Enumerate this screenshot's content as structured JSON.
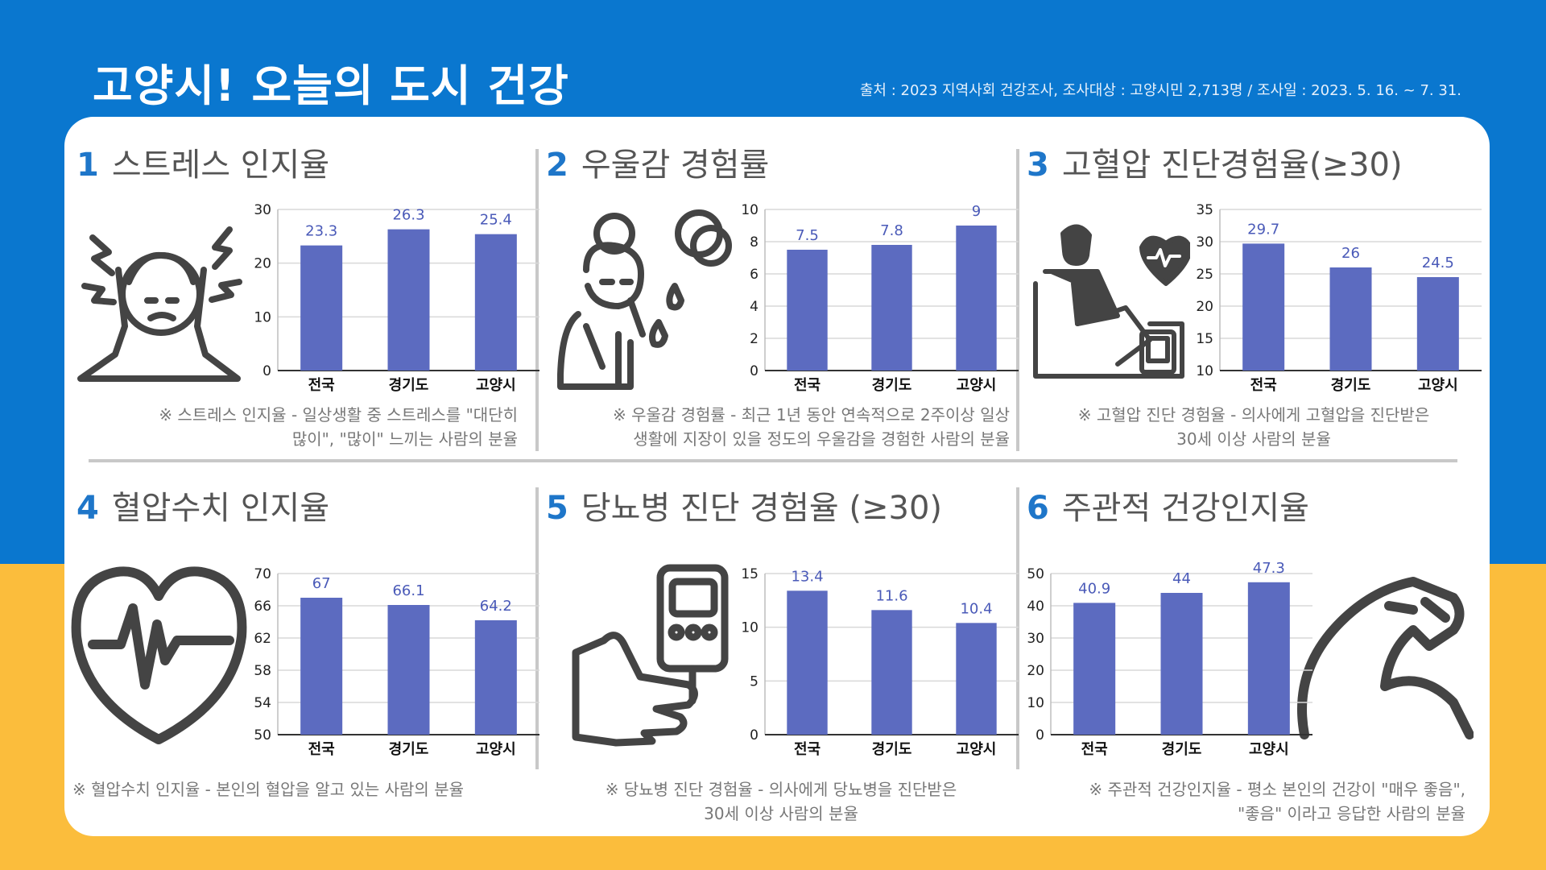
{
  "header": {
    "title": "고양시! 오늘의 도시 건강",
    "source": "출처 : 2023 지역사회 건강조사, 조사대상 : 고양시민  2,713명 / 조사일 : 2023. 5. 16. ~ 7. 31."
  },
  "colors": {
    "bar": "#5c6bc0",
    "label": "#4a5ab8",
    "title_number": "#1e76c9",
    "top_background": "#0a77cf",
    "bottom_background": "#fbbd3c"
  },
  "panels": [
    {
      "number": "1",
      "title": "스트레스 인지율",
      "icon": "stressed-person-icon",
      "note": [
        "※ 스트레스 인지율 - 일상생활 중 스트레스를 \"대단히",
        "많이\", \"많이\" 느끼는 사람의 분율"
      ]
    },
    {
      "number": "2",
      "title": "우울감 경험률",
      "icon": "depressed-woman-icon",
      "note": [
        "※ 우울감 경험률 - 최근 1년 동안 연속적으로 2주이상 일상",
        "생활에 지장이 있을 정도의 우울감을 경험한 사람의 분율"
      ]
    },
    {
      "number": "3",
      "title": "고혈압 진단경험율(≥30)",
      "icon": "blood-pressure-check-icon",
      "note": [
        "※ 고혈압 진단 경험율 - 의사에게 고혈압을 진단받은",
        "30세 이상 사람의 분율"
      ]
    },
    {
      "number": "4",
      "title": "혈압수치 인지율",
      "icon": "heart-pulse-icon",
      "note": [
        "※ 혈압수치 인지율 - 본인의 혈압을 알고 있는 사람의 분율"
      ]
    },
    {
      "number": "5",
      "title": "당뇨병 진단 경험율 (≥30)",
      "icon": "glucose-meter-icon",
      "note": [
        "※ 당뇨병 진단 경험율 - 의사에게 당뇨병을 진단받은",
        "30세 이상 사람의 분율"
      ]
    },
    {
      "number": "6",
      "title": "주관적 건강인지율",
      "icon": "flexed-arm-icon",
      "note": [
        "※ 주관적 건강인지율 - 평소 본인의 건강이 \"매우 좋음\",",
        "\"좋음\" 이라고 응답한 사람의 분율"
      ]
    }
  ],
  "chart_data": [
    {
      "type": "bar",
      "categories": [
        "전국",
        "경기도",
        "고양시"
      ],
      "values": [
        23.3,
        26.3,
        25.4
      ],
      "ylim": [
        0,
        30
      ],
      "yticks": [
        0,
        10,
        20,
        30
      ],
      "grid": true
    },
    {
      "type": "bar",
      "categories": [
        "전국",
        "경기도",
        "고양시"
      ],
      "values": [
        7.5,
        7.8,
        9
      ],
      "ylim": [
        0,
        10
      ],
      "yticks": [
        0,
        2,
        4,
        6,
        8,
        10
      ],
      "grid": true
    },
    {
      "type": "bar",
      "categories": [
        "전국",
        "경기도",
        "고양시"
      ],
      "values": [
        29.7,
        26,
        24.5
      ],
      "ylim": [
        10,
        35
      ],
      "yticks": [
        10,
        15,
        20,
        25,
        30,
        35
      ],
      "grid": true
    },
    {
      "type": "bar",
      "categories": [
        "전국",
        "경기도",
        "고양시"
      ],
      "values": [
        67,
        66.1,
        64.2
      ],
      "ylim": [
        50,
        70
      ],
      "yticks": [
        50,
        54,
        58,
        62,
        66,
        70
      ],
      "grid": true
    },
    {
      "type": "bar",
      "categories": [
        "전국",
        "경기도",
        "고양시"
      ],
      "values": [
        13.4,
        11.6,
        10.4
      ],
      "ylim": [
        0,
        15
      ],
      "yticks": [
        0,
        5,
        10,
        15
      ],
      "grid": true
    },
    {
      "type": "bar",
      "categories": [
        "전국",
        "경기도",
        "고양시"
      ],
      "values": [
        40.9,
        44,
        47.3
      ],
      "ylim": [
        0,
        50
      ],
      "yticks": [
        0,
        10,
        20,
        30,
        40,
        50
      ],
      "grid": true
    }
  ]
}
